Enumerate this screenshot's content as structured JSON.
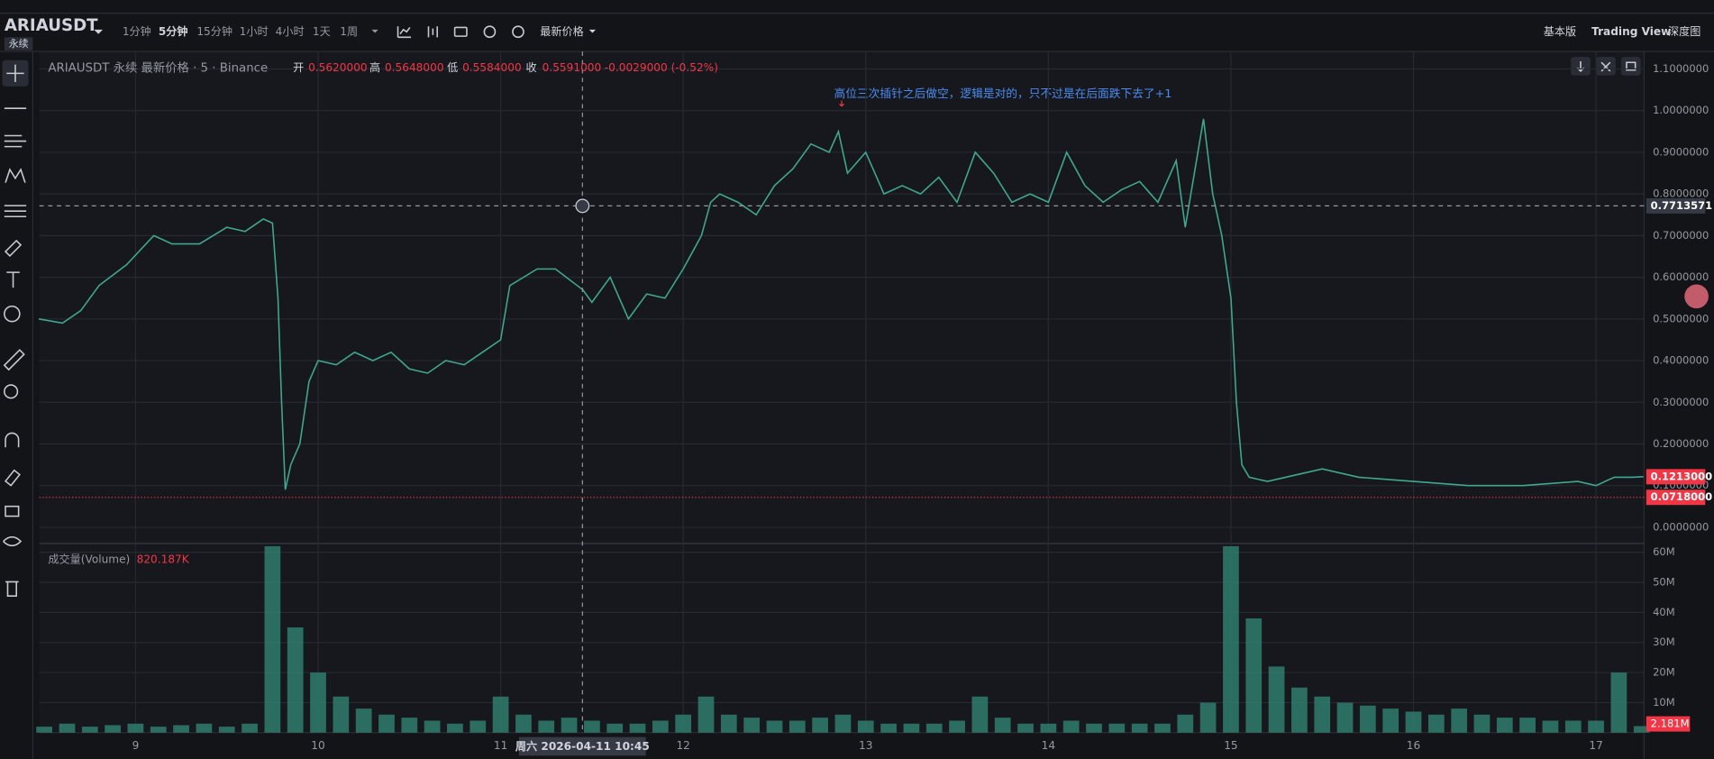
{
  "header": {
    "symbol": "ARIAUSDT",
    "badge": "永续",
    "intervals": [
      "1分钟",
      "5分钟",
      "15分钟",
      "1小时",
      "4小时",
      "1天",
      "1周"
    ],
    "active_interval": 1,
    "price_type": "最新价格",
    "views": [
      "基本版",
      "Trading View",
      "深度图"
    ],
    "active_view": 1
  },
  "annotation": "高位三次插针之后做空，逻辑是对的，只不过是在后面跌下去了+1",
  "crosshair_label": "周六 2026-04-11 10:45",
  "chart_data": [
    {
      "type": "line",
      "title": "ARIAUSDT 永续 最新价格 · 5 · Binance",
      "ohlc": [
        {
          "name": "开",
          "text": "0.5620000"
        },
        {
          "name": "高",
          "text": "0.5648000"
        },
        {
          "name": "低",
          "text": "0.5584000"
        },
        {
          "name": "收",
          "text": "0.5591000"
        }
      ],
      "change": "-0.0029000 (-0.52%)",
      "x": [
        8.47,
        8.6,
        8.7,
        8.8,
        8.95,
        9.1,
        9.2,
        9.35,
        9.5,
        9.6,
        9.7,
        9.75,
        9.78,
        9.8,
        9.82,
        9.85,
        9.9,
        9.95,
        10.0,
        10.1,
        10.2,
        10.3,
        10.4,
        10.5,
        10.6,
        10.7,
        10.8,
        10.9,
        11.0,
        11.05,
        11.2,
        11.3,
        11.45,
        11.5,
        11.6,
        11.7,
        11.8,
        11.9,
        12.0,
        12.1,
        12.15,
        12.2,
        12.3,
        12.4,
        12.5,
        12.6,
        12.7,
        12.8,
        12.85,
        12.9,
        13.0,
        13.1,
        13.2,
        13.3,
        13.4,
        13.5,
        13.6,
        13.7,
        13.8,
        13.9,
        14.0,
        14.1,
        14.2,
        14.3,
        14.4,
        14.5,
        14.6,
        14.7,
        14.75,
        14.85,
        14.9,
        14.95,
        15.0,
        15.03,
        15.06,
        15.1,
        15.2,
        15.3,
        15.5,
        15.7,
        16.0,
        16.3,
        16.6,
        16.9,
        17.0,
        17.1,
        17.2,
        17.26
      ],
      "values": [
        0.5,
        0.49,
        0.52,
        0.58,
        0.63,
        0.7,
        0.68,
        0.68,
        0.72,
        0.71,
        0.74,
        0.73,
        0.55,
        0.3,
        0.09,
        0.15,
        0.2,
        0.35,
        0.4,
        0.39,
        0.42,
        0.4,
        0.42,
        0.38,
        0.37,
        0.4,
        0.39,
        0.42,
        0.45,
        0.58,
        0.62,
        0.62,
        0.57,
        0.54,
        0.6,
        0.5,
        0.56,
        0.55,
        0.62,
        0.7,
        0.78,
        0.8,
        0.78,
        0.75,
        0.82,
        0.86,
        0.92,
        0.9,
        0.95,
        0.85,
        0.9,
        0.8,
        0.82,
        0.8,
        0.84,
        0.78,
        0.9,
        0.85,
        0.78,
        0.8,
        0.78,
        0.9,
        0.82,
        0.78,
        0.81,
        0.83,
        0.78,
        0.88,
        0.72,
        0.98,
        0.8,
        0.7,
        0.55,
        0.3,
        0.15,
        0.12,
        0.11,
        0.12,
        0.14,
        0.12,
        0.11,
        0.1,
        0.1,
        0.11,
        0.1,
        0.12,
        0.12,
        0.1213
      ],
      "color": "#3fa88f",
      "xlim": [
        8.473,
        17.263
      ],
      "xticks": [
        9,
        10,
        11,
        12,
        13,
        14,
        15,
        16,
        17
      ],
      "ylim": [
        -0.039,
        1.142
      ],
      "yticks": [
        {
          "value": 0,
          "label": "0.0000000"
        },
        {
          "value": 0.1,
          "label": "0.1000000"
        },
        {
          "value": 0.2,
          "label": "0.2000000"
        },
        {
          "value": 0.3,
          "label": "0.3000000"
        },
        {
          "value": 0.4,
          "label": "0.4000000"
        },
        {
          "value": 0.5,
          "label": "0.5000000"
        },
        {
          "value": 0.6,
          "label": "0.6000000"
        },
        {
          "value": 0.7,
          "label": "0.7000000"
        },
        {
          "value": 0.8,
          "label": "0.8000000"
        },
        {
          "value": 0.9,
          "label": "0.9000000"
        },
        {
          "value": 1,
          "label": "1.0000000"
        },
        {
          "value": 1.1,
          "label": "1.1000000"
        }
      ],
      "crosshair": {
        "x": 11.448,
        "y": 0.7713571
      },
      "price_labels": [
        {
          "value": 0.7713571,
          "label": "0.7713571",
          "color": "#363a45"
        },
        {
          "value": 0.1213,
          "label": "0.1213000",
          "color": "#f23645"
        },
        {
          "value": 0.0718,
          "label": "0.0718000",
          "color": "#f23645"
        }
      ],
      "grid": true
    },
    {
      "type": "bar",
      "title": "成交量(Volume)",
      "legend_value": "820.187K",
      "x": [
        8.5,
        8.625,
        8.75,
        8.875,
        9.0,
        9.125,
        9.25,
        9.375,
        9.5,
        9.625,
        9.75,
        9.875,
        10.0,
        10.125,
        10.25,
        10.375,
        10.5,
        10.625,
        10.75,
        10.875,
        11.0,
        11.125,
        11.25,
        11.375,
        11.5,
        11.625,
        11.75,
        11.875,
        12.0,
        12.125,
        12.25,
        12.375,
        12.5,
        12.625,
        12.75,
        12.875,
        13.0,
        13.125,
        13.25,
        13.375,
        13.5,
        13.625,
        13.75,
        13.875,
        14.0,
        14.125,
        14.25,
        14.375,
        14.5,
        14.625,
        14.75,
        14.875,
        15.0,
        15.125,
        15.25,
        15.375,
        15.5,
        15.625,
        15.75,
        15.875,
        16.0,
        16.125,
        16.25,
        16.375,
        16.5,
        16.625,
        16.75,
        16.875,
        17.0,
        17.125,
        17.25
      ],
      "values": [
        2000000,
        3000000,
        2000000,
        2500000,
        3000000,
        2000000,
        2500000,
        3000000,
        2000000,
        3000000,
        62000000,
        35000000,
        20000000,
        12000000,
        8000000,
        6000000,
        5000000,
        4000000,
        3000000,
        4000000,
        12000000,
        6000000,
        4000000,
        5000000,
        4000000,
        3000000,
        3000000,
        4000000,
        6000000,
        12000000,
        6000000,
        5000000,
        4000000,
        4000000,
        5000000,
        6000000,
        4000000,
        3000000,
        3000000,
        3000000,
        4000000,
        12000000,
        5000000,
        3000000,
        3000000,
        4000000,
        3000000,
        3000000,
        3000000,
        3000000,
        6000000,
        10000000,
        62000000,
        38000000,
        22000000,
        15000000,
        12000000,
        10000000,
        9000000,
        8000000,
        7000000,
        6000000,
        8000000,
        6000000,
        5000000,
        5000000,
        4000000,
        4000000,
        4000000,
        20000000,
        2181000
      ],
      "value_labels_last": {
        "value": 2181000,
        "label": "2.181M"
      },
      "color": "#2f7d6d",
      "xlim": [
        8.473,
        17.263
      ],
      "xticks": [
        9,
        10,
        11,
        12,
        13,
        14,
        15,
        16,
        17
      ],
      "ylim": [
        0,
        62900000
      ],
      "yticks": [
        {
          "value": 10000000,
          "label": "10M"
        },
        {
          "value": 20000000,
          "label": "20M"
        },
        {
          "value": 30000000,
          "label": "30M"
        },
        {
          "value": 40000000,
          "label": "40M"
        },
        {
          "value": 50000000,
          "label": "50M"
        },
        {
          "value": 60000000,
          "label": "60M"
        }
      ],
      "grid": true
    }
  ]
}
